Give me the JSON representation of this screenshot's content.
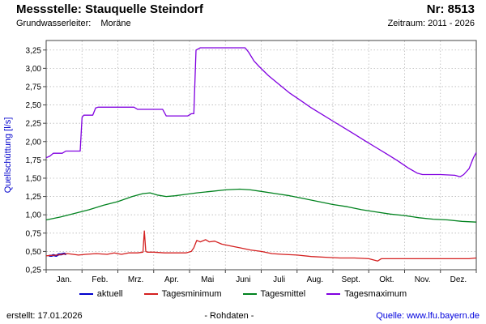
{
  "header": {
    "station_title": "Messstelle: Stauquelle Steindorf",
    "number": "Nr: 8513",
    "aquifer_label": "Grundwasserleiter:",
    "aquifer_value": "Moräne",
    "period": "Zeitraum: 2011 - 2026"
  },
  "footer": {
    "created": "erstellt: 17.01.2026",
    "center": "- Rohdaten -",
    "source": "Quelle: www.lfu.bayern.de"
  },
  "chart_data": {
    "type": "line",
    "title": "",
    "xlabel": "",
    "ylabel": "Quellschüttung [l/s]",
    "ylabel_color": "#0000cc",
    "grid": true,
    "grid_color": "#b8b8b8",
    "legend_position": "bottom",
    "ylim": [
      0.25,
      3.38
    ],
    "yticks": [
      0.25,
      0.5,
      0.75,
      1.0,
      1.25,
      1.5,
      1.75,
      2.0,
      2.25,
      2.5,
      2.75,
      3.0,
      3.25
    ],
    "ytick_labels": [
      "0,25",
      "0,50",
      "0,75",
      "1,00",
      "1,25",
      "1,50",
      "1,75",
      "2,00",
      "2,25",
      "2,50",
      "2,75",
      "3,00",
      "3,25"
    ],
    "x_months": [
      "Jan.",
      "Feb.",
      "Mrz.",
      "Apr.",
      "Mai",
      "Juni",
      "Juli",
      "Aug.",
      "Sept.",
      "Okt.",
      "Nov.",
      "Dez."
    ],
    "x_unit": "months 0-12 of one year",
    "series": [
      {
        "name": "aktuell",
        "color": "#0000cc",
        "stroke_width": 2.5,
        "x": [
          0.08,
          0.15,
          0.2,
          0.28,
          0.35,
          0.42,
          0.5,
          0.56
        ],
        "y": [
          0.44,
          0.44,
          0.45,
          0.44,
          0.46,
          0.46,
          0.47,
          0.46
        ]
      },
      {
        "name": "Tagesminimum",
        "color": "#d42020",
        "stroke_width": 1.3,
        "x": [
          0.0,
          0.3,
          0.6,
          0.9,
          1.1,
          1.4,
          1.7,
          1.9,
          2.1,
          2.3,
          2.55,
          2.7,
          2.74,
          2.78,
          2.82,
          3.0,
          3.3,
          3.6,
          3.9,
          4.05,
          4.12,
          4.2,
          4.3,
          4.45,
          4.55,
          4.7,
          4.9,
          5.1,
          5.4,
          5.7,
          6.0,
          6.3,
          6.6,
          7.0,
          7.4,
          7.8,
          8.2,
          8.6,
          9.0,
          9.25,
          9.35,
          9.5,
          9.8,
          10.2,
          10.6,
          11.0,
          11.4,
          11.8,
          12.0
        ],
        "y": [
          0.44,
          0.45,
          0.47,
          0.45,
          0.46,
          0.47,
          0.46,
          0.48,
          0.46,
          0.48,
          0.48,
          0.49,
          0.78,
          0.5,
          0.49,
          0.49,
          0.48,
          0.48,
          0.48,
          0.5,
          0.55,
          0.65,
          0.63,
          0.66,
          0.63,
          0.64,
          0.6,
          0.58,
          0.55,
          0.52,
          0.5,
          0.47,
          0.46,
          0.45,
          0.43,
          0.42,
          0.41,
          0.41,
          0.4,
          0.37,
          0.4,
          0.4,
          0.4,
          0.4,
          0.4,
          0.4,
          0.4,
          0.4,
          0.41
        ]
      },
      {
        "name": "Tagesmittel",
        "color": "#00821e",
        "stroke_width": 1.3,
        "x": [
          0.0,
          0.4,
          0.8,
          1.2,
          1.6,
          2.0,
          2.4,
          2.7,
          2.9,
          3.1,
          3.35,
          3.6,
          3.9,
          4.2,
          4.6,
          5.0,
          5.4,
          5.7,
          6.0,
          6.4,
          6.8,
          7.2,
          7.6,
          8.0,
          8.4,
          8.8,
          9.2,
          9.6,
          10.0,
          10.4,
          10.8,
          11.2,
          11.6,
          12.0
        ],
        "y": [
          0.93,
          0.97,
          1.02,
          1.07,
          1.13,
          1.18,
          1.25,
          1.29,
          1.3,
          1.27,
          1.25,
          1.26,
          1.28,
          1.3,
          1.32,
          1.34,
          1.35,
          1.34,
          1.32,
          1.29,
          1.26,
          1.22,
          1.18,
          1.14,
          1.11,
          1.07,
          1.04,
          1.01,
          0.99,
          0.96,
          0.94,
          0.93,
          0.91,
          0.9
        ]
      },
      {
        "name": "Tagesmaximum",
        "color": "#8000e0",
        "stroke_width": 1.3,
        "x": [
          0.0,
          0.1,
          0.2,
          0.45,
          0.55,
          0.95,
          1.0,
          1.05,
          1.3,
          1.38,
          1.45,
          2.45,
          2.55,
          3.25,
          3.35,
          3.95,
          4.05,
          4.12,
          4.18,
          4.3,
          5.55,
          5.65,
          5.8,
          5.95,
          6.2,
          6.5,
          6.8,
          7.1,
          7.4,
          7.7,
          8.0,
          8.3,
          8.6,
          8.9,
          9.2,
          9.5,
          9.8,
          10.1,
          10.35,
          10.5,
          11.0,
          11.4,
          11.55,
          11.65,
          11.8,
          11.92,
          12.0
        ],
        "y": [
          1.78,
          1.8,
          1.84,
          1.84,
          1.87,
          1.87,
          2.33,
          2.36,
          2.36,
          2.46,
          2.47,
          2.47,
          2.44,
          2.44,
          2.35,
          2.35,
          2.38,
          2.38,
          3.25,
          3.28,
          3.28,
          3.22,
          3.1,
          3.02,
          2.9,
          2.78,
          2.66,
          2.56,
          2.46,
          2.37,
          2.28,
          2.19,
          2.1,
          2.01,
          1.92,
          1.83,
          1.74,
          1.64,
          1.57,
          1.55,
          1.55,
          1.54,
          1.52,
          1.55,
          1.63,
          1.78,
          1.85
        ]
      }
    ]
  }
}
